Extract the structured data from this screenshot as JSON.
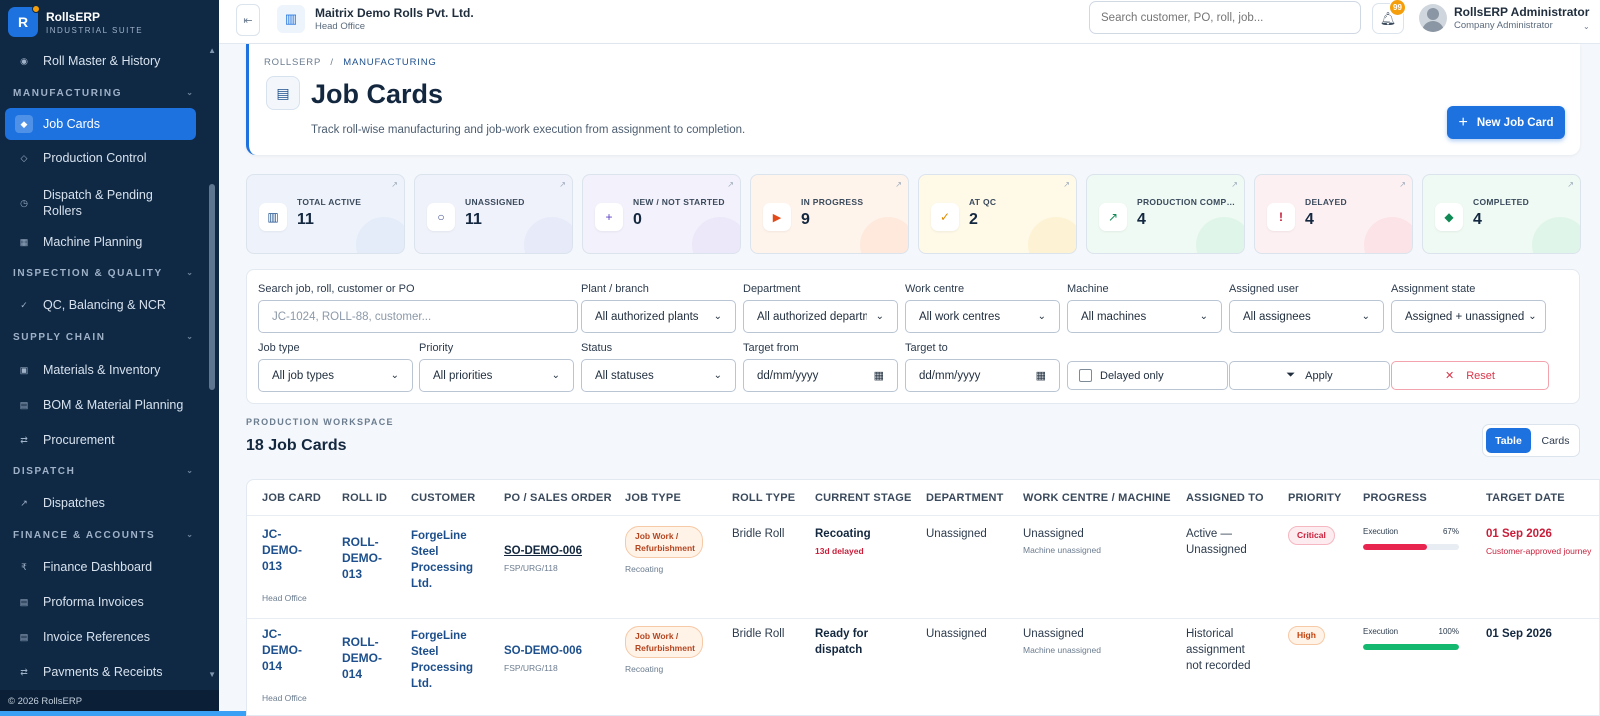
{
  "brand": {
    "name": "RollsERP",
    "sub": "INDUSTRIAL SUITE",
    "logo": "R"
  },
  "sidebar": {
    "items": [
      {
        "label": "Roll Master & History",
        "icon": "circle-dot-icon"
      },
      {
        "section": "MANUFACTURING"
      },
      {
        "label": "Job Cards",
        "icon": "diamond-icon",
        "active": true
      },
      {
        "label": "Production Control",
        "icon": "diamond-outline-icon"
      },
      {
        "label": "Dispatch & Pending Rollers",
        "icon": "clock-icon"
      },
      {
        "label": "Machine Planning",
        "icon": "grid-icon"
      },
      {
        "section": "INSPECTION & QUALITY"
      },
      {
        "label": "QC, Balancing & NCR",
        "icon": "check-icon"
      },
      {
        "section": "SUPPLY CHAIN"
      },
      {
        "label": "Materials & Inventory",
        "icon": "box-icon"
      },
      {
        "label": "BOM & Material Planning",
        "icon": "list-icon"
      },
      {
        "label": "Procurement",
        "icon": "swap-icon"
      },
      {
        "section": "DISPATCH"
      },
      {
        "label": "Dispatches",
        "icon": "arrow-icon"
      },
      {
        "section": "FINANCE & ACCOUNTS"
      },
      {
        "label": "Finance Dashboard",
        "icon": "rupee-icon"
      },
      {
        "label": "Proforma Invoices",
        "icon": "doc-icon"
      },
      {
        "label": "Invoice References",
        "icon": "doc-icon"
      },
      {
        "label": "Payments & Receipts",
        "icon": "swap-icon"
      }
    ],
    "footer": "© 2026 RollsERP"
  },
  "topbar": {
    "company": "Maitrix Demo Rolls Pvt. Ltd.",
    "branch": "Head Office",
    "search_placeholder": "Search customer, PO, roll, job...",
    "notifications": "99",
    "user_name": "RollsERP Administrator",
    "user_role": "Company Administrator"
  },
  "header": {
    "crumb_root": "ROLLSERP",
    "crumb_sep": "/",
    "crumb_current": "MANUFACTURING",
    "title": "Job Cards",
    "subtitle": "Track roll-wise manufacturing and job-work execution from assignment to completion.",
    "new_button": "New Job Card"
  },
  "kpis": [
    {
      "label": "TOTAL ACTIVE",
      "value": "11",
      "icon": "columns-icon",
      "bg": "#eef3fb",
      "accent": "#1d4f8c",
      "blob": "#dbe6f6"
    },
    {
      "label": "UNASSIGNED",
      "value": "11",
      "icon": "circle-icon",
      "bg": "#f0f2fb",
      "accent": "#3a4a8c",
      "blob": "#dfe3f7"
    },
    {
      "label": "NEW / NOT STARTED",
      "value": "0",
      "icon": "plus-icon",
      "bg": "#f3f1fb",
      "accent": "#5b3fc4",
      "blob": "#e6e0f7"
    },
    {
      "label": "IN PROGRESS",
      "value": "9",
      "icon": "play-icon",
      "bg": "#fff4ec",
      "accent": "#e24a1a",
      "blob": "#fde0cf"
    },
    {
      "label": "AT QC",
      "value": "2",
      "icon": "check-icon",
      "bg": "#fff9e8",
      "accent": "#e08a00",
      "blob": "#fcecc1"
    },
    {
      "label": "PRODUCTION COMPLE...",
      "value": "4",
      "icon": "arrow-icon",
      "bg": "#eefaf3",
      "accent": "#0f8a55",
      "blob": "#d5f1e2"
    },
    {
      "label": "DELAYED",
      "value": "4",
      "icon": "alert-icon",
      "bg": "#fdf0f2",
      "accent": "#c81e3a",
      "blob": "#f9d9df"
    },
    {
      "label": "COMPLETED",
      "value": "4",
      "icon": "diamond-icon",
      "bg": "#eefaf3",
      "accent": "#0f8a55",
      "blob": "#d5f1e2"
    }
  ],
  "filters": {
    "search_label": "Search job, roll, customer or PO",
    "search_placeholder": "JC-1024, ROLL-88, customer...",
    "plant_label": "Plant / branch",
    "plant_value": "All authorized plants",
    "dept_label": "Department",
    "dept_value": "All authorized departments",
    "wc_label": "Work centre",
    "wc_value": "All work centres",
    "machine_label": "Machine",
    "machine_value": "All machines",
    "user_label": "Assigned user",
    "user_value": "All assignees",
    "astate_label": "Assignment state",
    "astate_value": "Assigned + unassigned",
    "jobtype_label": "Job type",
    "jobtype_value": "All job types",
    "priority_label": "Priority",
    "priority_value": "All priorities",
    "status_label": "Status",
    "status_value": "All statuses",
    "from_label": "Target from",
    "from_value": "dd/mm/yyyy",
    "to_label": "Target to",
    "to_value": "dd/mm/yyyy",
    "delayed_only": "Delayed only",
    "apply": "Apply",
    "reset": "Reset"
  },
  "workspace": {
    "label": "PRODUCTION WORKSPACE",
    "title": "18 Job Cards",
    "view_table": "Table",
    "view_cards": "Cards"
  },
  "table": {
    "columns": [
      "JOB CARD",
      "ROLL ID",
      "CUSTOMER",
      "PO / SALES ORDER",
      "JOB TYPE",
      "ROLL TYPE",
      "CURRENT STAGE",
      "DEPARTMENT",
      "WORK CENTRE / MACHINE",
      "ASSIGNED TO",
      "PRIORITY",
      "PROGRESS",
      "TARGET DATE"
    ],
    "rows": [
      {
        "job": "JC-DEMO-013",
        "job_branch": "Head Office",
        "roll": "ROLL-DEMO-013",
        "customer": "ForgeLine Steel Processing Ltd.",
        "po": "SO-DEMO-006",
        "po_sub": "FSP/URG/118",
        "job_type": "Job Work / Refurbishment",
        "job_type_sub": "Recoating",
        "roll_type": "Bridle Roll",
        "stage": "Recoating",
        "stage_note": "13d delayed",
        "department": "Unassigned",
        "work_centre": "Unassigned",
        "machine": "Machine unassigned",
        "assigned": "Active — Unassigned",
        "priority": "Critical",
        "progress_label": "Execution",
        "progress": 67,
        "progress_text": "67%",
        "progress_color": "#e8254f",
        "target": "01 Sep 2026",
        "target_note": "Customer-approved journey"
      },
      {
        "job": "JC-DEMO-014",
        "job_branch": "Head Office",
        "roll": "ROLL-DEMO-014",
        "customer": "ForgeLine Steel Processing Ltd.",
        "po": "SO-DEMO-006",
        "po_sub": "FSP/URG/118",
        "job_type": "Job Work / Refurbishment",
        "job_type_sub": "Recoating",
        "roll_type": "Bridle Roll",
        "stage": "Ready for dispatch",
        "stage_note": "",
        "department": "Unassigned",
        "work_centre": "Unassigned",
        "machine": "Machine unassigned",
        "assigned": "Historical assignment not recorded",
        "priority": "High",
        "progress_label": "Execution",
        "progress": 100,
        "progress_text": "100%",
        "progress_color": "#14b86e",
        "target": "01 Sep 2026",
        "target_note": ""
      }
    ]
  }
}
